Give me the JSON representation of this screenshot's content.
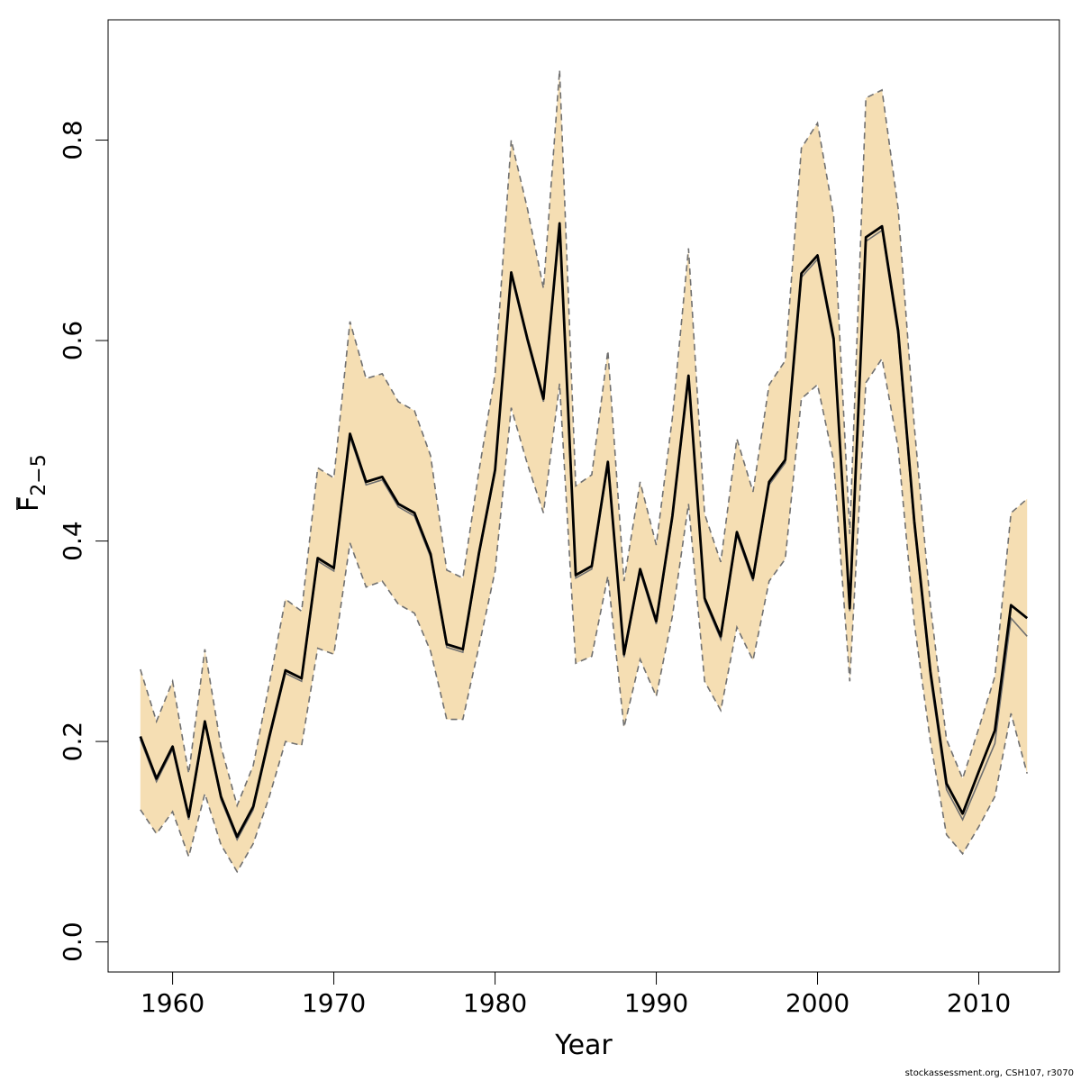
{
  "chart_data": {
    "type": "line",
    "xlabel": "Year",
    "ylabel_main": "F",
    "ylabel_sub": "2−5",
    "xlim": [
      1956,
      2015
    ],
    "ylim": [
      -0.03,
      0.92
    ],
    "xticks": [
      1960,
      1970,
      1980,
      1990,
      2000,
      2010
    ],
    "yticks": [
      0.0,
      0.2,
      0.4,
      0.6,
      0.8
    ],
    "ytick_labels": [
      "0.0",
      "0.2",
      "0.4",
      "0.6",
      "0.8"
    ],
    "colors": {
      "band": "#f5deb3",
      "estimate": "#000000",
      "retro": "#707070",
      "bounds": "#707070"
    },
    "x": [
      1958,
      1959,
      1960,
      1961,
      1962,
      1963,
      1964,
      1965,
      1966,
      1967,
      1968,
      1969,
      1970,
      1971,
      1972,
      1973,
      1974,
      1975,
      1976,
      1977,
      1978,
      1979,
      1980,
      1981,
      1982,
      1983,
      1984,
      1985,
      1986,
      1987,
      1988,
      1989,
      1990,
      1991,
      1992,
      1993,
      1994,
      1995,
      1996,
      1997,
      1998,
      1999,
      2000,
      2001,
      2002,
      2003,
      2004,
      2005,
      2006,
      2007,
      2008,
      2009,
      2010,
      2011,
      2012,
      2013
    ],
    "series": [
      {
        "role": "estimate",
        "values": [
          0.205,
          0.163,
          0.195,
          0.125,
          0.22,
          0.145,
          0.105,
          0.135,
          0.205,
          0.271,
          0.263,
          0.383,
          0.373,
          0.507,
          0.459,
          0.464,
          0.437,
          0.428,
          0.387,
          0.297,
          0.292,
          0.388,
          0.471,
          0.668,
          0.602,
          0.542,
          0.717,
          0.366,
          0.375,
          0.479,
          0.287,
          0.372,
          0.32,
          0.425,
          0.565,
          0.343,
          0.305,
          0.409,
          0.363,
          0.459,
          0.481,
          0.667,
          0.685,
          0.602,
          0.333,
          0.703,
          0.714,
          0.61,
          0.42,
          0.27,
          0.158,
          0.128,
          0.17,
          0.211,
          0.336,
          0.323
        ]
      },
      {
        "role": "retrospective",
        "values": [
          0.202,
          0.16,
          0.192,
          0.122,
          0.217,
          0.142,
          0.102,
          0.132,
          0.202,
          0.268,
          0.26,
          0.38,
          0.37,
          0.504,
          0.456,
          0.461,
          0.434,
          0.425,
          0.384,
          0.294,
          0.289,
          0.385,
          0.468,
          0.665,
          0.599,
          0.539,
          0.713,
          0.363,
          0.372,
          0.476,
          0.284,
          0.369,
          0.317,
          0.422,
          0.562,
          0.34,
          0.302,
          0.406,
          0.36,
          0.456,
          0.478,
          0.663,
          0.681,
          0.598,
          0.33,
          0.699,
          0.71,
          0.605,
          0.414,
          0.264,
          0.152,
          0.122,
          0.16,
          0.198,
          0.323,
          0.305
        ]
      },
      {
        "role": "upper",
        "values": [
          0.272,
          0.22,
          0.26,
          0.168,
          0.292,
          0.195,
          0.136,
          0.176,
          0.258,
          0.342,
          0.33,
          0.473,
          0.463,
          0.619,
          0.562,
          0.567,
          0.539,
          0.53,
          0.485,
          0.371,
          0.363,
          0.47,
          0.567,
          0.8,
          0.732,
          0.652,
          0.87,
          0.455,
          0.466,
          0.59,
          0.36,
          0.459,
          0.396,
          0.523,
          0.692,
          0.427,
          0.379,
          0.502,
          0.449,
          0.556,
          0.58,
          0.792,
          0.817,
          0.725,
          0.407,
          0.842,
          0.85,
          0.732,
          0.515,
          0.336,
          0.202,
          0.163,
          0.213,
          0.265,
          0.428,
          0.442
        ]
      },
      {
        "role": "lower",
        "values": [
          0.132,
          0.108,
          0.13,
          0.085,
          0.148,
          0.097,
          0.07,
          0.098,
          0.145,
          0.2,
          0.196,
          0.293,
          0.287,
          0.398,
          0.354,
          0.36,
          0.337,
          0.328,
          0.29,
          0.222,
          0.222,
          0.295,
          0.37,
          0.533,
          0.477,
          0.428,
          0.557,
          0.278,
          0.285,
          0.365,
          0.214,
          0.282,
          0.245,
          0.325,
          0.437,
          0.26,
          0.231,
          0.314,
          0.281,
          0.36,
          0.382,
          0.542,
          0.556,
          0.48,
          0.26,
          0.558,
          0.582,
          0.493,
          0.318,
          0.2,
          0.107,
          0.088,
          0.115,
          0.145,
          0.228,
          0.168
        ]
      }
    ]
  },
  "credit": "stockassessment.org, CSH107, r3070"
}
